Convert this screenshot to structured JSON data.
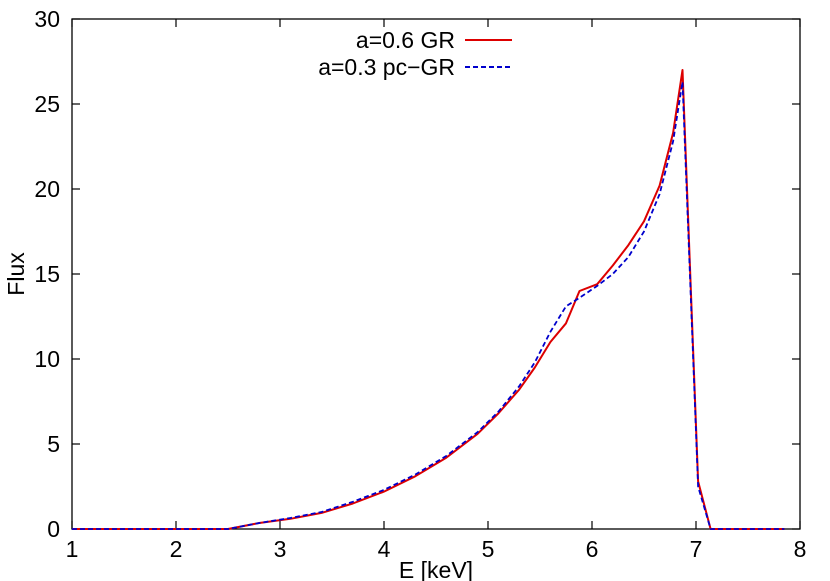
{
  "chart_data": {
    "type": "line",
    "xlabel": "E [keV]",
    "ylabel": "Flux",
    "xlim": [
      1,
      8
    ],
    "ylim": [
      0,
      30
    ],
    "xticks": [
      "1",
      "2",
      "3",
      "4",
      "5",
      "6",
      "7",
      "8"
    ],
    "yticks": [
      "0",
      "5",
      "10",
      "15",
      "20",
      "25",
      "30"
    ],
    "xtick_values": [
      1,
      2,
      3,
      4,
      5,
      6,
      7,
      8
    ],
    "ytick_values": [
      0,
      5,
      10,
      15,
      20,
      25,
      30
    ],
    "grid": false,
    "legend_position": "top-center",
    "series": [
      {
        "name": "a=0.6 GR",
        "color": "#dd0000",
        "dash": "solid",
        "x": [
          1.0,
          2.0,
          2.5,
          2.8,
          3.1,
          3.4,
          3.7,
          4.0,
          4.3,
          4.6,
          4.9,
          5.1,
          5.3,
          5.45,
          5.6,
          5.75,
          5.88,
          6.05,
          6.2,
          6.35,
          6.5,
          6.65,
          6.78,
          6.87,
          7.02,
          7.14,
          7.5,
          7.85
        ],
        "y": [
          0,
          0,
          0,
          0.35,
          0.6,
          0.95,
          1.5,
          2.2,
          3.1,
          4.2,
          5.6,
          6.8,
          8.2,
          9.5,
          11.0,
          12.1,
          14.0,
          14.4,
          15.5,
          16.7,
          18.1,
          20.2,
          23.3,
          27.0,
          2.8,
          0,
          0,
          0
        ]
      },
      {
        "name": "a=0.3 pc−GR",
        "color": "#0000cc",
        "dash": "dashed",
        "x": [
          1.0,
          2.0,
          2.5,
          2.8,
          3.1,
          3.4,
          3.7,
          4.0,
          4.3,
          4.6,
          4.9,
          5.1,
          5.3,
          5.45,
          5.6,
          5.75,
          5.88,
          6.05,
          6.2,
          6.35,
          6.5,
          6.65,
          6.78,
          6.87,
          7.02,
          7.14,
          7.5,
          7.85
        ],
        "y": [
          0,
          0,
          0,
          0.35,
          0.65,
          1.0,
          1.6,
          2.3,
          3.2,
          4.3,
          5.7,
          6.9,
          8.4,
          9.8,
          11.6,
          13.1,
          13.6,
          14.3,
          15.0,
          16.0,
          17.5,
          19.7,
          22.8,
          26.3,
          2.5,
          0,
          0,
          0
        ]
      }
    ]
  }
}
